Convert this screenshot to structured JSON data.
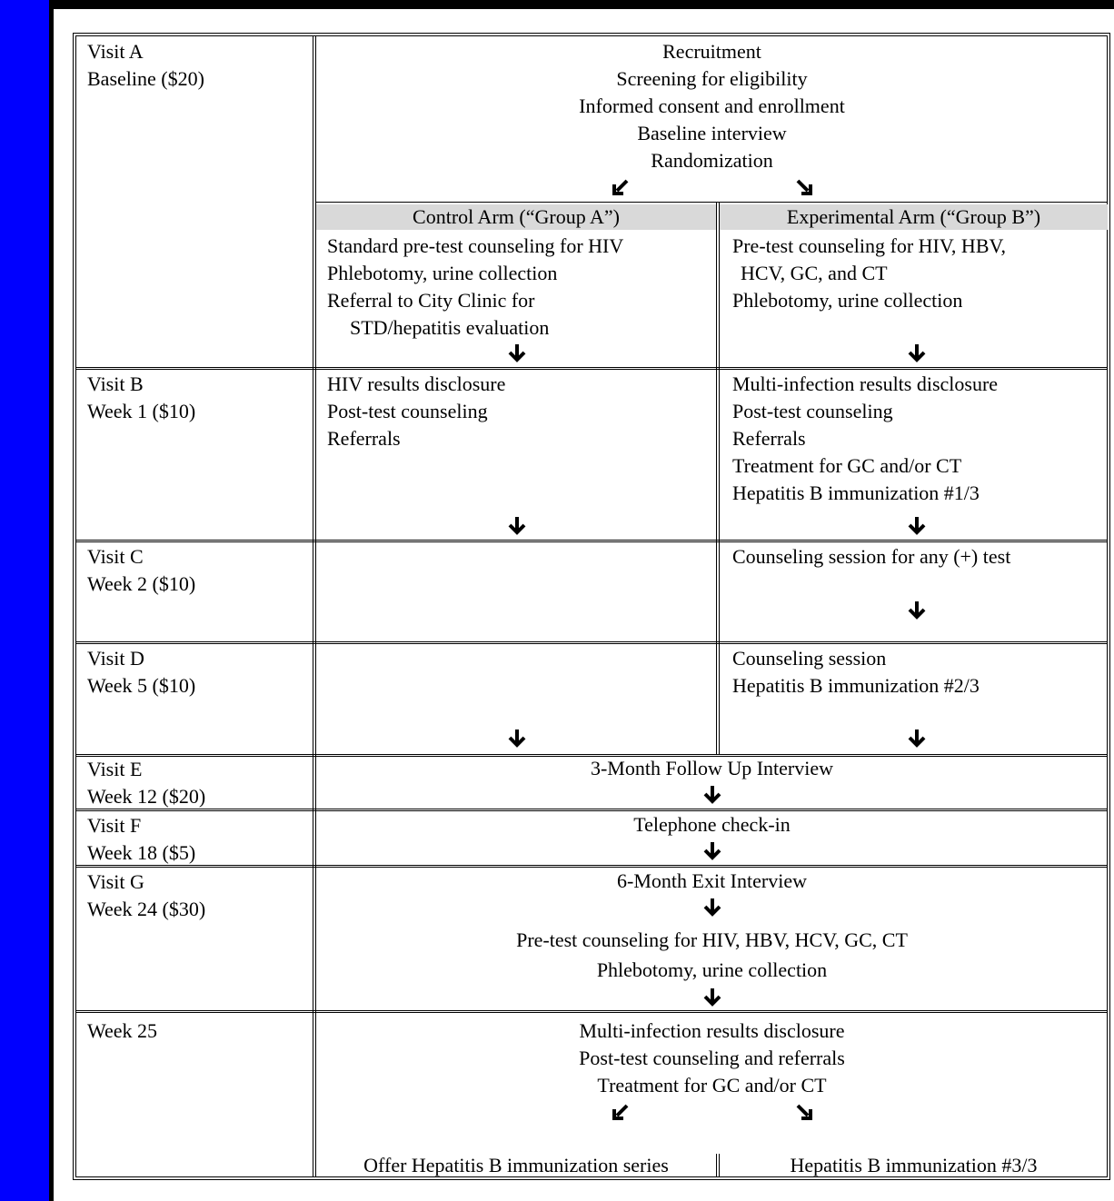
{
  "visits": {
    "a": {
      "name": "Visit A",
      "detail": "Baseline ($20)"
    },
    "b": {
      "name": "Visit B",
      "detail": "Week 1 ($10)"
    },
    "c": {
      "name": "Visit C",
      "detail": "Week 2 ($10)"
    },
    "d": {
      "name": "Visit D",
      "detail": "Week 5 ($10)"
    },
    "e": {
      "name": "Visit E",
      "detail": "Week 12 ($20)"
    },
    "f": {
      "name": "Visit F",
      "detail": "Week 18 ($5)"
    },
    "g": {
      "name": "Visit G",
      "detail": "Week 24 ($30)"
    },
    "h": {
      "name": "Week 25"
    }
  },
  "baseline": [
    "Recruitment",
    "Screening for eligibility",
    "Informed consent and enrollment",
    "Baseline interview",
    "Randomization"
  ],
  "arms": {
    "control": "Control Arm (“Group A”)",
    "experimental": "Experimental Arm (“Group B”)"
  },
  "control_a": [
    "Standard pre-test counseling for HIV",
    "Phlebotomy, urine collection",
    "Referral to City Clinic for",
    "STD/hepatitis evaluation"
  ],
  "exp_a": [
    "Pre-test counseling for HIV, HBV,",
    "HCV, GC, and CT",
    "Phlebotomy, urine collection"
  ],
  "control_b": [
    "HIV results disclosure",
    "Post-test counseling",
    "Referrals"
  ],
  "exp_b": [
    "Multi-infection results disclosure",
    "Post-test counseling",
    "Referrals",
    "Treatment for GC and/or CT",
    "Hepatitis B immunization #1/3"
  ],
  "exp_c": [
    "Counseling session for any (+) test"
  ],
  "exp_d": [
    "Counseling session",
    "Hepatitis B immunization #2/3"
  ],
  "row_e": "3-Month Follow Up Interview",
  "row_f": "Telephone check-in",
  "row_g": [
    "6-Month Exit Interview",
    "Pre-test counseling for HIV, HBV, HCV, GC, CT",
    "Phlebotomy, urine collection"
  ],
  "row_h": [
    "Multi-infection results disclosure",
    "Post-test counseling and referrals",
    "Treatment for GC and/or CT"
  ],
  "final": {
    "control": "Offer Hepatitis B immunization series",
    "experimental": "Hepatitis B immunization #3/3"
  }
}
